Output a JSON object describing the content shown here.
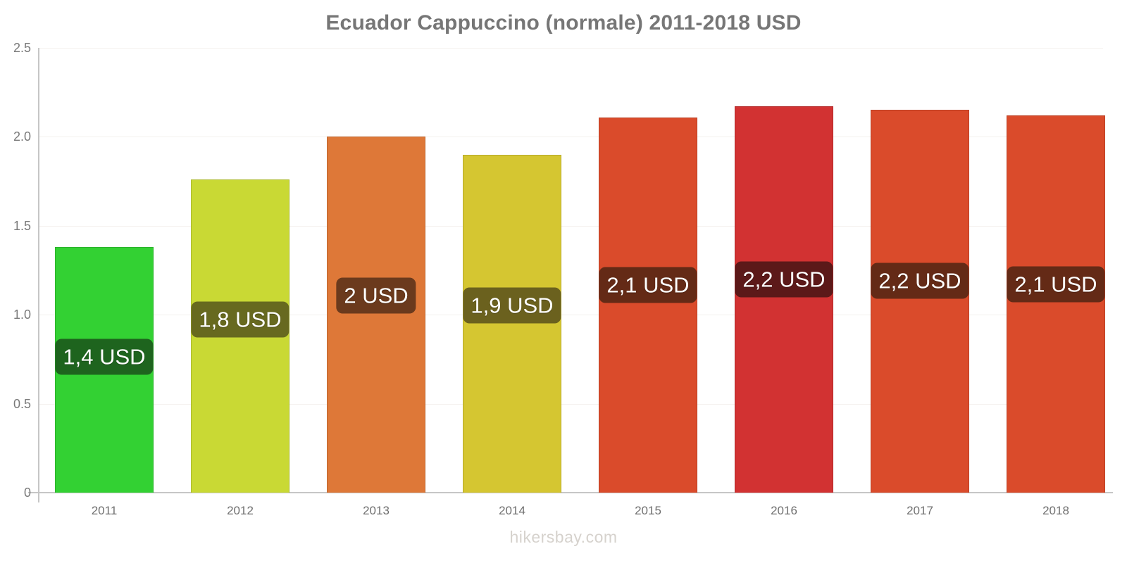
{
  "title": "Ecuador Cappuccino (normale) 2011-2018 USD",
  "watermark": "hikersbay.com",
  "colors": {
    "background": "#ffffff",
    "axis": "#c6c6c6",
    "grid": "#f4f1ee",
    "title_text": "#767676",
    "tick_text": "#6f6f6f",
    "bar_label_text": "#ffffff",
    "watermark_text": "#d6d2cd"
  },
  "chart_data": {
    "type": "bar",
    "title": "Ecuador Cappuccino (normale) 2011-2018 USD",
    "xlabel": "",
    "ylabel": "",
    "categories": [
      "2011",
      "2012",
      "2013",
      "2014",
      "2015",
      "2016",
      "2017",
      "2018"
    ],
    "values": [
      1.38,
      1.76,
      2.0,
      1.9,
      2.11,
      2.17,
      2.15,
      2.12
    ],
    "bar_value_labels": [
      "1,4 USD",
      "1,8 USD",
      "2 USD",
      "1,9 USD",
      "2,1 USD",
      "2,2 USD",
      "2,2 USD",
      "2,1 USD"
    ],
    "bar_colors": [
      "#33d133",
      "#c9d934",
      "#de7838",
      "#d5c631",
      "#da4b2b",
      "#d23232",
      "#da4b2b",
      "#da4b2b"
    ],
    "bar_label_bg_colors": [
      "#1e641e",
      "#67691f",
      "#6b3a1d",
      "#6b611e",
      "#642a16",
      "#5c1919",
      "#642a16",
      "#642a16"
    ],
    "ylim": [
      0,
      2.5
    ],
    "yticks": [
      {
        "value": 0,
        "label": "0"
      },
      {
        "value": 0.5,
        "label": "0.5"
      },
      {
        "value": 1,
        "label": "1.0"
      },
      {
        "value": 1.5,
        "label": "1.5"
      },
      {
        "value": 2,
        "label": "2.0"
      },
      {
        "value": 2.5,
        "label": "2.5"
      }
    ],
    "grid": true,
    "legend": "none"
  }
}
